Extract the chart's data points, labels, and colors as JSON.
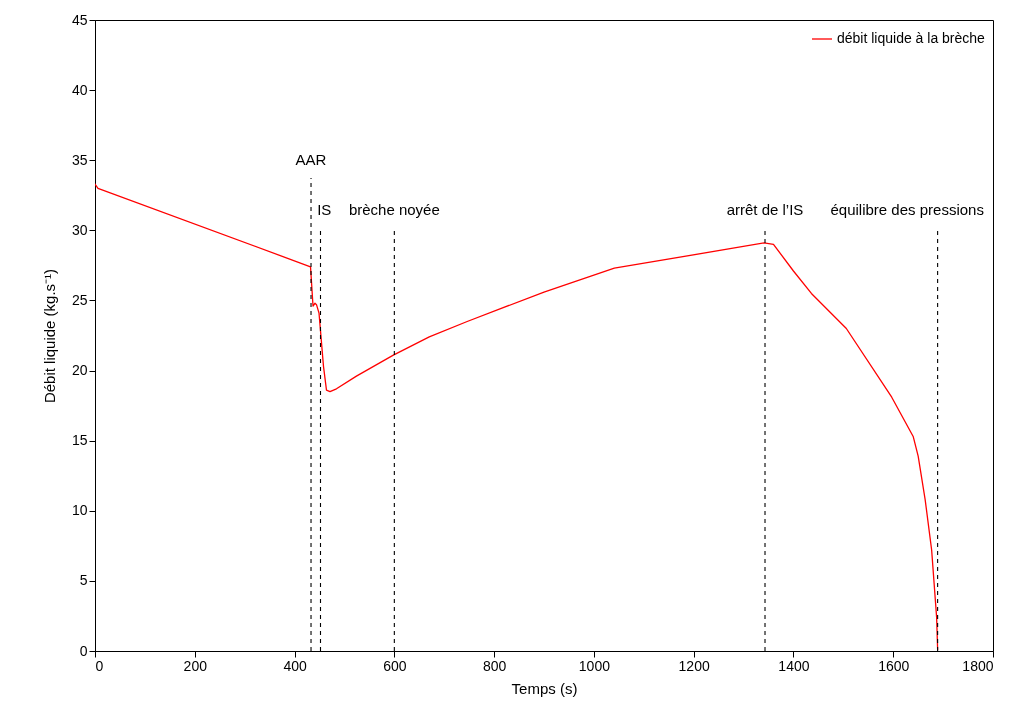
{
  "chart_data": {
    "type": "line",
    "xlabel": "Temps (s)",
    "ylabel": "Débit liquide (kg.s⁻¹)",
    "xlim": [
      0,
      1800
    ],
    "xticks": [
      0,
      200,
      400,
      600,
      800,
      1000,
      1200,
      1400,
      1600,
      1800
    ],
    "ylim": [
      0,
      45
    ],
    "yticks": [
      0,
      5,
      10,
      15,
      20,
      25,
      30,
      35,
      40,
      45
    ],
    "grid": false,
    "legend": "top right",
    "line_style": "solid",
    "marker": "none",
    "series": [
      {
        "name": "débit liquide à la brèche",
        "color": "#ff0000",
        "x": [
          0,
          6,
          432,
          437,
          441,
          444,
          449,
          458,
          464,
          471,
          484,
          524,
          598,
          670,
          746,
          900,
          1041,
          1341,
          1360,
          1400,
          1436,
          1506,
          1597,
          1640,
          1650,
          1664,
          1677,
          1687,
          1689
        ],
        "values": [
          33.3,
          33.0,
          27.4,
          24.6,
          24.8,
          24.7,
          24.1,
          20.3,
          18.6,
          18.5,
          18.7,
          19.6,
          21.1,
          22.4,
          23.5,
          25.6,
          27.3,
          29.1,
          29.0,
          27.1,
          25.5,
          23.0,
          18.1,
          15.3,
          13.9,
          10.8,
          7.2,
          2.4,
          0.1
        ]
      }
    ],
    "ref_lines": [
      {
        "axis": "x",
        "value": 433,
        "label": "AAR",
        "color": "#000000",
        "line_style": "dashed"
      },
      {
        "axis": "x",
        "value": 452,
        "label": "IS",
        "color": "#000000",
        "line_style": "dashed"
      },
      {
        "axis": "x",
        "value": 600,
        "label": "brèche noyée",
        "color": "#000000",
        "line_style": "dashed"
      },
      {
        "axis": "x",
        "value": 1343,
        "label": "arrêt de l’IS",
        "color": "#000000",
        "line_style": "dashed"
      },
      {
        "axis": "x",
        "value": 1689,
        "label": "équilibre des pressions",
        "color": "#000000",
        "line_style": "dashed"
      }
    ]
  }
}
